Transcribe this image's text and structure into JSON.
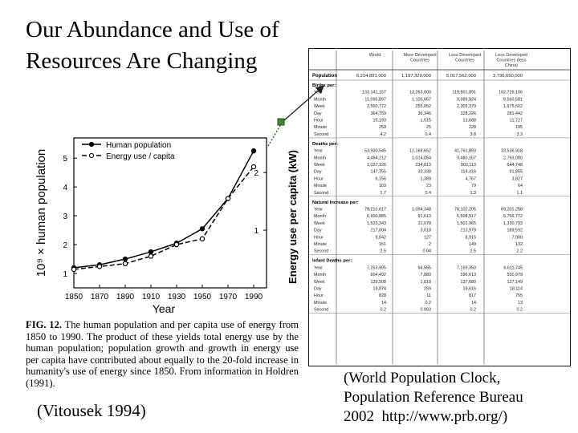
{
  "title": "Our Abundance and Use of Resources Are Changing",
  "figure": {
    "ylabel_left": "10⁹ × human population",
    "ylabel_right": "Energy use per capita (kW)",
    "xlabel": "Year",
    "legend": [
      "Human population",
      "Energy use / capita"
    ],
    "caption_label": "FIG. 12.",
    "caption_text": "The human population and per capita use of energy from 1850 to 1990. The product of these yields total energy use by the human population; population growth and growth in energy use per capita have contributed about equally to the 20-fold increase in humanity's use of energy since 1850. From information in Holdren (1991)."
  },
  "citation_left": "(Vitousek 1994)",
  "citation_right": "(World Population Clock,\nPopulation Reference Bureau\n2002  http://www.prb.org/)",
  "chart_data": {
    "type": "line",
    "x": [
      1850,
      1870,
      1890,
      1910,
      1930,
      1950,
      1970,
      1990
    ],
    "xticks": [
      "1850",
      "1870",
      "1890",
      "1910",
      "1930",
      "1950",
      "1970",
      "1990"
    ],
    "xlim": [
      1850,
      2000
    ],
    "ylim_left": [
      0.5,
      5.7
    ],
    "yticks_left": [
      "1",
      "2",
      "3",
      "4",
      "5"
    ],
    "ylim_right": [
      0,
      2.6
    ],
    "yticks_right": [
      "1",
      "2"
    ],
    "series": [
      {
        "name": "Human population",
        "axis": "left",
        "marker": "filled",
        "values": [
          1.2,
          1.3,
          1.5,
          1.75,
          2.05,
          2.55,
          3.6,
          5.25
        ]
      },
      {
        "name": "Energy use / capita",
        "axis": "right",
        "marker": "open",
        "values": [
          0.32,
          0.37,
          0.42,
          0.55,
          0.75,
          0.85,
          1.55,
          2.1
        ]
      }
    ]
  },
  "table": {
    "columns": [
      "World",
      "More Developed Countries",
      "Less Developed Countries",
      "Less Developed Countries (less China)"
    ],
    "population_label": "Population",
    "population": [
      "6,214,891,000",
      "1,197,329,000",
      "5,017,562,000",
      "3,736,650,000"
    ],
    "sections": [
      {
        "label": "Births per:",
        "rows": [
          {
            "label": "Year",
            "values": [
              "133,141,157",
              "13,263,000",
              "119,801,091",
              "102,726,106"
            ]
          },
          {
            "label": "Month",
            "values": [
              "11,095,097",
              "1,105,667",
              "9,989,924",
              "8,560,581"
            ]
          },
          {
            "label": "Week",
            "values": [
              "2,560,772",
              "255,052",
              "2,305,379",
              "1,975,512"
            ]
          },
          {
            "label": "Day",
            "values": [
              "364,759",
              "36,346",
              "328,226",
              "281,442"
            ]
          },
          {
            "label": "Hour",
            "values": [
              "15,193",
              "1,515",
              "13,688",
              "11,727"
            ]
          },
          {
            "label": "Minute",
            "values": [
              "253",
              "25",
              "228",
              "195"
            ]
          },
          {
            "label": "Second",
            "values": [
              "4.2",
              "0.4",
              "3.8",
              "3.3"
            ]
          }
        ]
      },
      {
        "label": "Deaths per:",
        "rows": [
          {
            "label": "Year",
            "values": [
              "53,930,545",
              "12,168,652",
              "41,761,893",
              "33,536,918"
            ]
          },
          {
            "label": "Month",
            "values": [
              "4,494,212",
              "1,014,054",
              "3,480,157",
              "2,793,000"
            ]
          },
          {
            "label": "Week",
            "values": [
              "1,037,126",
              "234,013",
              "803,113",
              "644,748"
            ]
          },
          {
            "label": "Day",
            "values": [
              "147,755",
              "33,338",
              "114,416",
              "91,855"
            ]
          },
          {
            "label": "Hour",
            "values": [
              "6,156",
              "1,389",
              "4,767",
              "3,827"
            ]
          },
          {
            "label": "Minute",
            "values": [
              "103",
              "23",
              "79",
              "64"
            ]
          },
          {
            "label": "Second",
            "values": [
              "1.7",
              "0.4",
              "1.3",
              "1.1"
            ]
          }
        ]
      },
      {
        "label": "Natural Increase per:",
        "rows": [
          {
            "label": "Year",
            "values": [
              "79,210,617",
              "1,094,348",
              "78,102,205",
              "69,201,258"
            ]
          },
          {
            "label": "Month",
            "values": [
              "6,600,885",
              "91,613",
              "6,508,517",
              "5,766,772"
            ]
          },
          {
            "label": "Week",
            "values": [
              "1,523,343",
              "21,078",
              "1,501,965",
              "1,330,793"
            ]
          },
          {
            "label": "Day",
            "values": [
              "217,004",
              "3,018",
              "213,979",
              "189,592"
            ]
          },
          {
            "label": "Hour",
            "values": [
              "9,042",
              "127",
              "8,915",
              "7,900"
            ]
          },
          {
            "label": "Minute",
            "values": [
              "151",
              "2",
              "149",
              "132"
            ]
          },
          {
            "label": "Second",
            "values": [
              "2.5",
              "0.04",
              "2.5",
              "2.2"
            ]
          }
        ]
      },
      {
        "label": "Infant Deaths per:",
        "rows": [
          {
            "label": "Year",
            "values": [
              "7,253,905",
              "94,555",
              "7,159,350",
              "6,611,745"
            ]
          },
          {
            "label": "Month",
            "values": [
              "604,492",
              "7,880",
              "596,613",
              "550,979"
            ]
          },
          {
            "label": "Week",
            "values": [
              "139,508",
              "1,818",
              "137,680",
              "127,149"
            ]
          },
          {
            "label": "Day",
            "values": [
              "19,874",
              "259",
              "19,615",
              "18,114"
            ]
          },
          {
            "label": "Hour",
            "values": [
              "828",
              "11",
              "817",
              "755"
            ]
          },
          {
            "label": "Minute",
            "values": [
              "14",
              "0.2",
              "14",
              "13"
            ]
          },
          {
            "label": "Second",
            "values": [
              "0.2",
              "0.003",
              "0.2",
              "0.2"
            ]
          }
        ]
      }
    ]
  }
}
